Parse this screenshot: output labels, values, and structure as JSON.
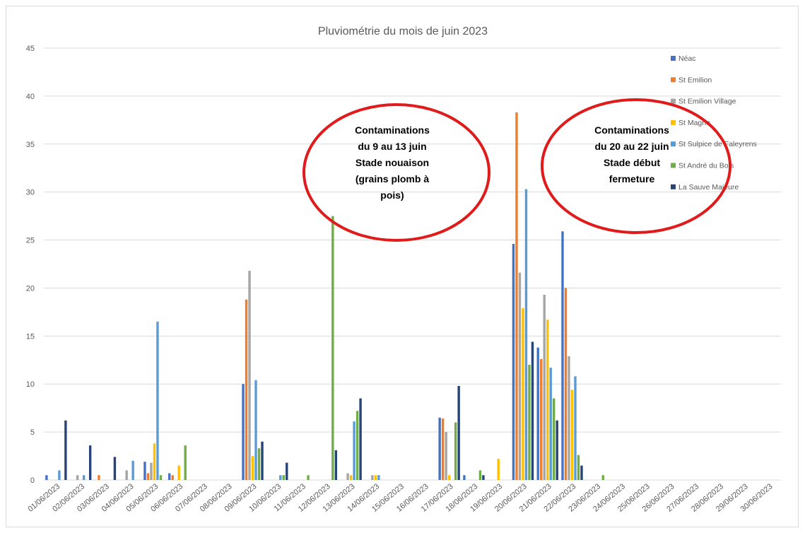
{
  "chart_data": {
    "type": "bar",
    "title": "Pluviométrie du mois de juin 2023",
    "xlabel": "",
    "ylabel": "",
    "ylim": [
      0,
      45
    ],
    "yticks": [
      0,
      5,
      10,
      15,
      20,
      25,
      30,
      35,
      40,
      45
    ],
    "grid": true,
    "legend_position": "right",
    "categories": [
      "01/06/2023",
      "02/06/2023",
      "03/06/2023",
      "04/06/2023",
      "05/06/2023",
      "06/06/2023",
      "07/06/2023",
      "08/06/2023",
      "09/06/2023",
      "10/06/2023",
      "11/06/2023",
      "12/06/2023",
      "13/06/2023",
      "14/06/2023",
      "15/06/2023",
      "16/06/2023",
      "17/06/2023",
      "18/06/2023",
      "19/06/2023",
      "20/06/2023",
      "21/06/2023",
      "22/06/2023",
      "23/06/2023",
      "24/06/2023",
      "25/06/2023",
      "26/06/2023",
      "27/06/2023",
      "28/06/2023",
      "29/06/2023",
      "30/06/2023"
    ],
    "series": [
      {
        "name": "Néac",
        "color": "#4472c4",
        "values": [
          0.5,
          0,
          0,
          0,
          1.9,
          0.7,
          0,
          0,
          10.0,
          0,
          0,
          0,
          0,
          0,
          0,
          0,
          6.5,
          0.5,
          0,
          24.6,
          13.8,
          25.9,
          0,
          0,
          0,
          0,
          0,
          0,
          0,
          0
        ]
      },
      {
        "name": "St Emilion",
        "color": "#ed7d31",
        "values": [
          0,
          0,
          0.5,
          0,
          0.7,
          0.5,
          0,
          0,
          18.8,
          0,
          0,
          0,
          0,
          0,
          0,
          0,
          6.4,
          0,
          0,
          38.3,
          12.6,
          20.0,
          0,
          0,
          0,
          0,
          0,
          0,
          0,
          0
        ]
      },
      {
        "name": "St Emilion Village",
        "color": "#a5a5a5",
        "values": [
          0,
          0.5,
          0,
          1.0,
          1.8,
          0,
          0,
          0,
          21.8,
          0,
          0,
          0,
          0.7,
          0.5,
          0,
          0,
          5.0,
          0,
          0,
          21.6,
          19.3,
          12.9,
          0,
          0,
          0,
          0,
          0,
          0,
          0,
          0
        ]
      },
      {
        "name": "St Magne",
        "color": "#ffc000",
        "values": [
          0,
          0,
          0,
          0,
          3.8,
          1.5,
          0,
          0,
          2.5,
          0,
          0,
          0,
          0.5,
          0.5,
          0,
          0,
          0.5,
          0,
          2.2,
          17.9,
          16.7,
          9.4,
          0,
          0,
          0,
          0,
          0,
          0,
          0,
          0
        ]
      },
      {
        "name": "St Sulpice de Faleyrens",
        "color": "#5b9bd5",
        "values": [
          1.0,
          0.5,
          0,
          2.0,
          16.5,
          0,
          0,
          0,
          10.4,
          0.5,
          0,
          0,
          6.1,
          0.5,
          0,
          0,
          0,
          0,
          0,
          30.3,
          11.7,
          10.8,
          0,
          0,
          0,
          0,
          0,
          0,
          0,
          0
        ]
      },
      {
        "name": "St André du Bois",
        "color": "#70ad47",
        "values": [
          0,
          0,
          0,
          0,
          0.5,
          3.6,
          0,
          0,
          3.3,
          0.5,
          0.5,
          27.5,
          7.2,
          0,
          0,
          0,
          6.0,
          1.0,
          0,
          12.0,
          8.5,
          2.6,
          0.5,
          0,
          0,
          0,
          0,
          0,
          0,
          0
        ]
      },
      {
        "name": "La Sauve Majeure",
        "color": "#264478",
        "values": [
          6.2,
          3.6,
          2.4,
          0,
          0,
          0,
          0,
          0,
          4.0,
          1.8,
          0,
          3.1,
          8.5,
          0,
          0,
          0,
          9.8,
          0.5,
          0,
          14.4,
          6.2,
          1.5,
          0,
          0,
          0,
          0,
          0,
          0,
          0,
          0
        ]
      }
    ],
    "annotations": [
      {
        "lines": [
          "Contaminations",
          "du 9 au 13 juin",
          "Stade nouaison",
          "(grains plomb à",
          "pois)"
        ]
      },
      {
        "lines": [
          "Contaminations",
          "du 20 au 22 juin",
          "Stade début",
          "fermeture"
        ]
      }
    ]
  },
  "style": {
    "grid_color": "#d9d9d9",
    "annotation_color": "#e01b1b"
  }
}
